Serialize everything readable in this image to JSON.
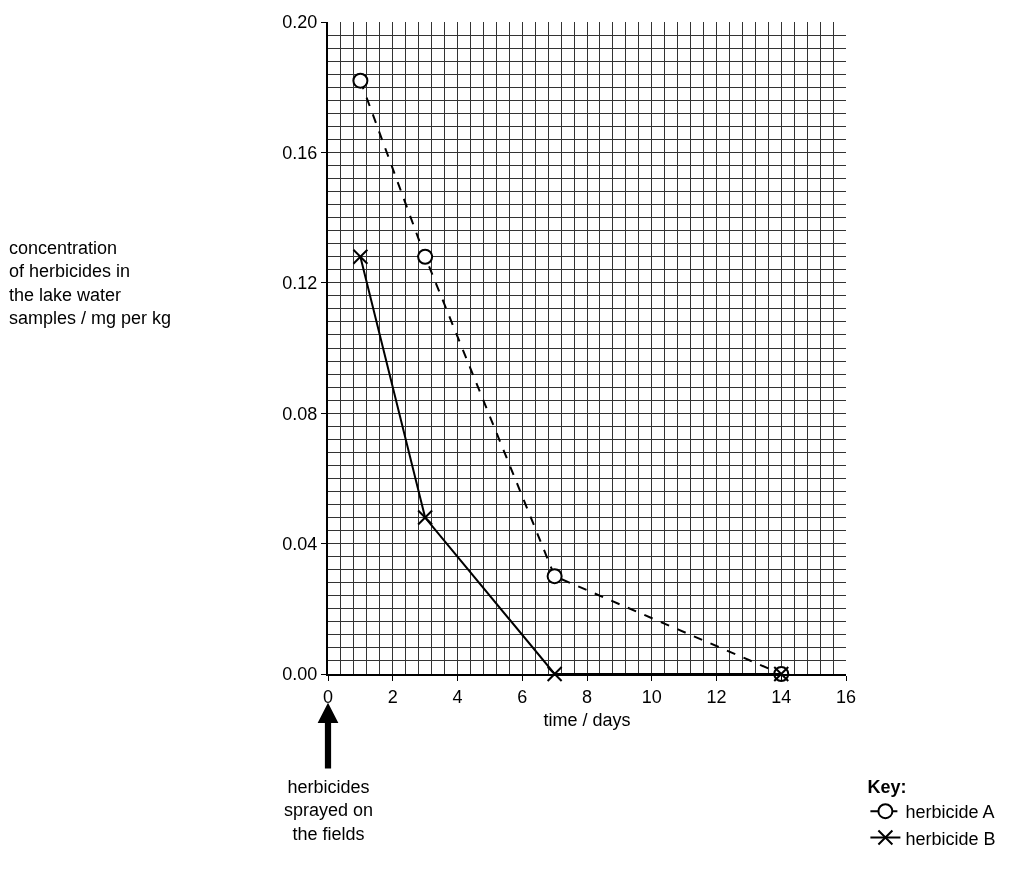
{
  "chart_data": {
    "type": "line",
    "xlabel": "time / days",
    "legend_title": "Key:",
    "x": [
      1,
      3,
      7,
      14
    ],
    "series": [
      {
        "name": "herbicide A",
        "color": "#000000",
        "values": [
          0.182,
          0.128,
          0.03,
          0
        ],
        "marker": "circle",
        "line_style": "dashed"
      },
      {
        "name": "herbicide B",
        "color": "#000000",
        "values": [
          0.128,
          0.048,
          0,
          0
        ],
        "marker": "cross",
        "line_style": "solid"
      }
    ],
    "xlim": [
      0,
      16
    ],
    "xticks": [
      0,
      2,
      4,
      6,
      8,
      10,
      12,
      14,
      16
    ],
    "ylim": [
      0,
      0.2
    ],
    "yticks": [
      {
        "value": 0,
        "label": "0.00"
      },
      {
        "value": 0.04,
        "label": "0.04"
      },
      {
        "value": 0.08,
        "label": "0.08"
      },
      {
        "value": 0.12,
        "label": "0.12"
      },
      {
        "value": 0.16,
        "label": "0.16"
      },
      {
        "value": 0.2,
        "label": "0.20"
      }
    ],
    "annotations": [
      "concentration\nof herbicides in\nthe lake water\nsamples / mg per kg",
      "herbicides\nsprayed on\nthe fields"
    ],
    "grid": true,
    "legend": "bottom right"
  }
}
